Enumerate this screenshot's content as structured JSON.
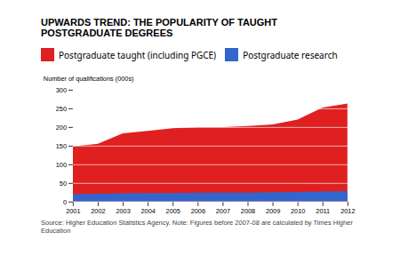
{
  "chart_data": {
    "type": "area",
    "title": "UPWARDS TREND: THE POPULARITY OF TAUGHT POSTGRADUATE DEGREES",
    "x": [
      2001,
      2002,
      2003,
      2004,
      2005,
      2006,
      2007,
      2008,
      2009,
      2010,
      2011,
      2012
    ],
    "series": [
      {
        "name": "Postgraduate taught (including PGCE)",
        "color": "#e02020",
        "values": [
          148,
          155,
          183,
          190,
          197,
          200,
          200,
          203,
          207,
          220,
          252,
          263
        ]
      },
      {
        "name": "Postgraduate research",
        "color": "#3366cc",
        "values": [
          20,
          21,
          22,
          23,
          23,
          24,
          24,
          24,
          25,
          26,
          27,
          28
        ]
      }
    ],
    "xlim": [
      2001,
      2012
    ],
    "xticks": [
      2001,
      2002,
      2003,
      2004,
      2005,
      2006,
      2007,
      2008,
      2009,
      2010,
      2011,
      2012
    ],
    "ylim": [
      0,
      300
    ],
    "yticks": [
      0,
      50,
      100,
      150,
      200,
      250,
      300
    ],
    "ylabel": "Number of qualifications (000s)",
    "grid": true,
    "legend": "upper left",
    "annotations": [
      "Source: Higher Education Statistics Agency. Note: Figures before 2007-08 are calculated by Times Higher Education"
    ]
  }
}
